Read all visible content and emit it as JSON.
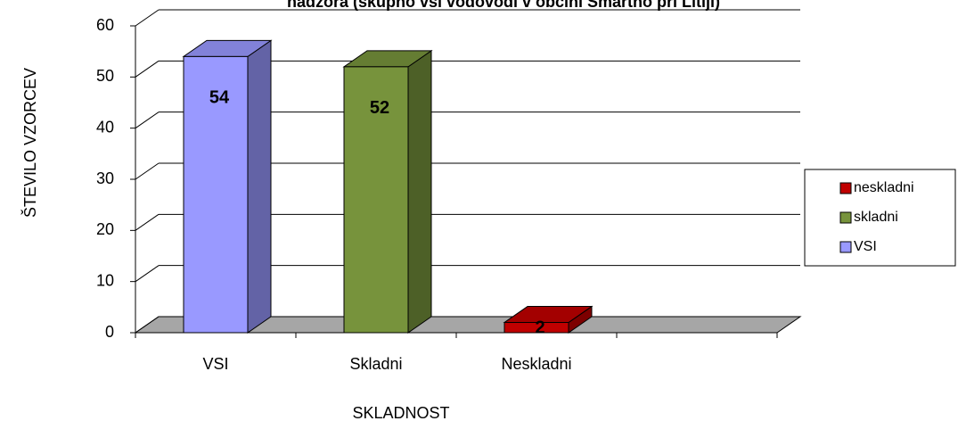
{
  "chart_data": {
    "type": "bar3d",
    "title": "nadzora (skupno vsi vodovodi v občini Šmartno pri Litiji)",
    "ylabel": "ŠTEVILO VZORCEV",
    "xlabel": "SKLADNOST",
    "categories": [
      "VSI",
      "Skladni",
      "Neskladni",
      null
    ],
    "series": [
      {
        "name": "VSI",
        "color": "#9999ff",
        "values": [
          54,
          null,
          null,
          null
        ]
      },
      {
        "name": "skladni",
        "color": "#77933c",
        "values": [
          null,
          52,
          null,
          null
        ]
      },
      {
        "name": "neskladni",
        "color": "#c00000",
        "values": [
          null,
          null,
          2,
          null
        ]
      }
    ],
    "ylim": [
      0,
      60
    ],
    "yticks": [
      0,
      10,
      20,
      30,
      40,
      50,
      60
    ],
    "grid": true,
    "legend": "right"
  }
}
